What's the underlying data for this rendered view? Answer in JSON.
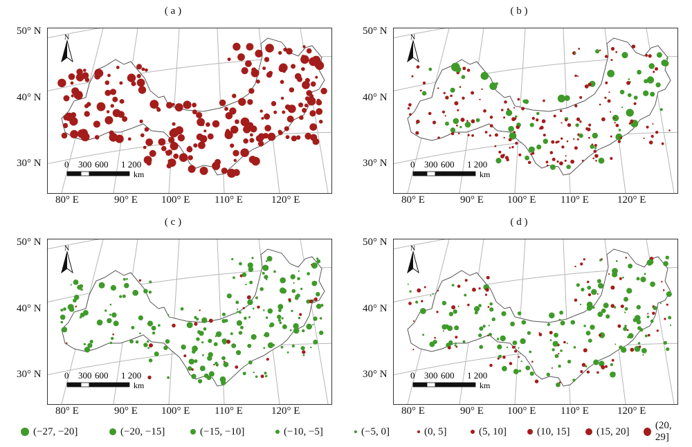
{
  "panels": [
    {
      "label": "( a )"
    },
    {
      "label": "( b )"
    },
    {
      "label": "( c )"
    },
    {
      "label": "( d )"
    }
  ],
  "axes": {
    "lat_labels": [
      "50° N",
      "40° N",
      "30° N"
    ],
    "lon_labels": [
      "80° E",
      "90° E",
      "100° E",
      "110° E",
      "120° E"
    ]
  },
  "scalebar": {
    "ticks": [
      "0",
      "300",
      "600",
      "1 200"
    ],
    "unit": "km",
    "north_label": "N"
  },
  "colors": {
    "positive": "#a31d1b",
    "negative": "#3f9a2a",
    "outline": "#555555",
    "graticule": "#b5b5b5"
  },
  "legend": [
    {
      "label": "(−27, −20]",
      "sign": "neg",
      "size": 12
    },
    {
      "label": "(−20, −15]",
      "sign": "neg",
      "size": 10
    },
    {
      "label": "(−15, −10]",
      "sign": "neg",
      "size": 8
    },
    {
      "label": "(−10, −5]",
      "sign": "neg",
      "size": 6
    },
    {
      "label": "(−5, 0]",
      "sign": "neg",
      "size": 4
    },
    {
      "label": "(0, 5]",
      "sign": "pos",
      "size": 4
    },
    {
      "label": "(5, 10]",
      "sign": "pos",
      "size": 6
    },
    {
      "label": "(10, 15]",
      "sign": "pos",
      "size": 8
    },
    {
      "label": "(15, 20]",
      "sign": "pos",
      "size": 10
    },
    {
      "label": "(20, 29]",
      "sign": "pos",
      "size": 12
    }
  ]
}
